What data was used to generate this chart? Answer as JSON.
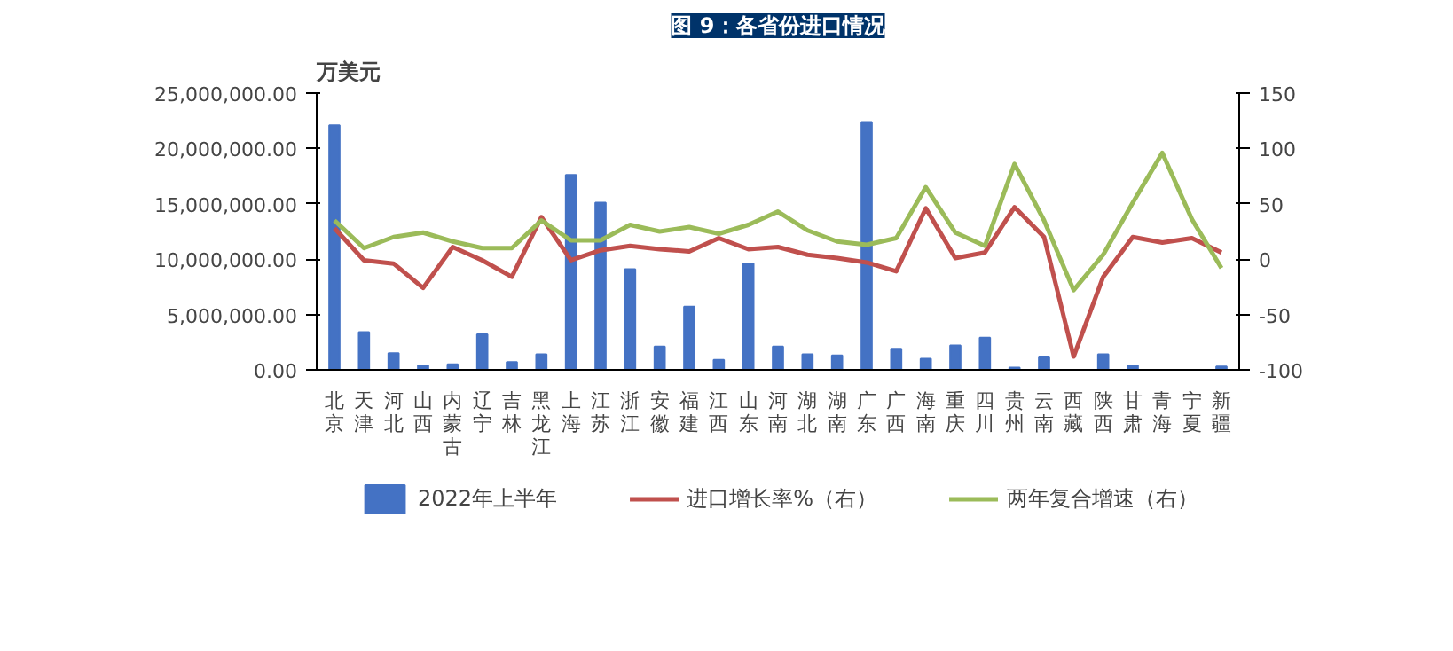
{
  "chart_data": {
    "type": "bar",
    "title": "图 9：各省份进口情况",
    "ylabel": "万美元",
    "categories": [
      "北京",
      "天津",
      "河北",
      "山西",
      "内蒙古",
      "辽宁",
      "吉林",
      "黑龙江",
      "上海",
      "江苏",
      "浙江",
      "安徽",
      "福建",
      "江西",
      "山东",
      "河南",
      "湖北",
      "湖南",
      "广东",
      "广西",
      "海南",
      "重庆",
      "四川",
      "贵州",
      "云南",
      "西藏",
      "陕西",
      "甘肃",
      "青海",
      "宁夏",
      "新疆"
    ],
    "series": [
      {
        "name": "2022年上半年",
        "color": "#4472c4",
        "values": [
          22100000,
          3400000,
          1500000,
          400000,
          500000,
          3200000,
          700000,
          1400000,
          17600000,
          15100000,
          9100000,
          2100000,
          5700000,
          900000,
          9600000,
          2100000,
          1400000,
          1300000,
          22400000,
          1900000,
          1000000,
          2200000,
          2900000,
          200000,
          1200000,
          0,
          1400000,
          400000,
          0,
          0,
          300000
        ]
      },
      {
        "name": "进口增长率%（右）",
        "type": "line",
        "axis": "y2",
        "color": "#c0504d",
        "values": [
          28,
          -1,
          -4,
          -26,
          11,
          -1,
          -16,
          38,
          -1,
          8,
          12,
          9,
          7,
          19,
          9,
          11,
          4,
          1,
          -3,
          -11,
          46,
          1,
          6,
          47,
          20,
          -88,
          -16,
          20,
          15,
          19,
          6
        ]
      },
      {
        "name": "两年复合增速（右）",
        "type": "line",
        "axis": "y2",
        "color": "#9bbb59",
        "values": [
          35,
          10,
          20,
          24,
          16,
          10,
          10,
          35,
          17,
          17,
          31,
          25,
          29,
          23,
          31,
          43,
          26,
          16,
          13,
          19,
          65,
          24,
          12,
          86,
          35,
          -28,
          4,
          51,
          96,
          36,
          -8
        ]
      }
    ],
    "ylim": [
      0,
      25000000
    ],
    "yticks": [
      {
        "value": 0,
        "label": "0.00"
      },
      {
        "value": 5000000,
        "label": "5,000,000.00"
      },
      {
        "value": 10000000,
        "label": "10,000,000.00"
      },
      {
        "value": 15000000,
        "label": "15,000,000.00"
      },
      {
        "value": 20000000,
        "label": "20,000,000.00"
      },
      {
        "value": 25000000,
        "label": "25,000,000.00"
      }
    ],
    "y2lim": [
      -100,
      150
    ],
    "y2ticks": [
      -100,
      -50,
      0,
      50,
      100,
      150
    ],
    "legend": "bottom"
  }
}
